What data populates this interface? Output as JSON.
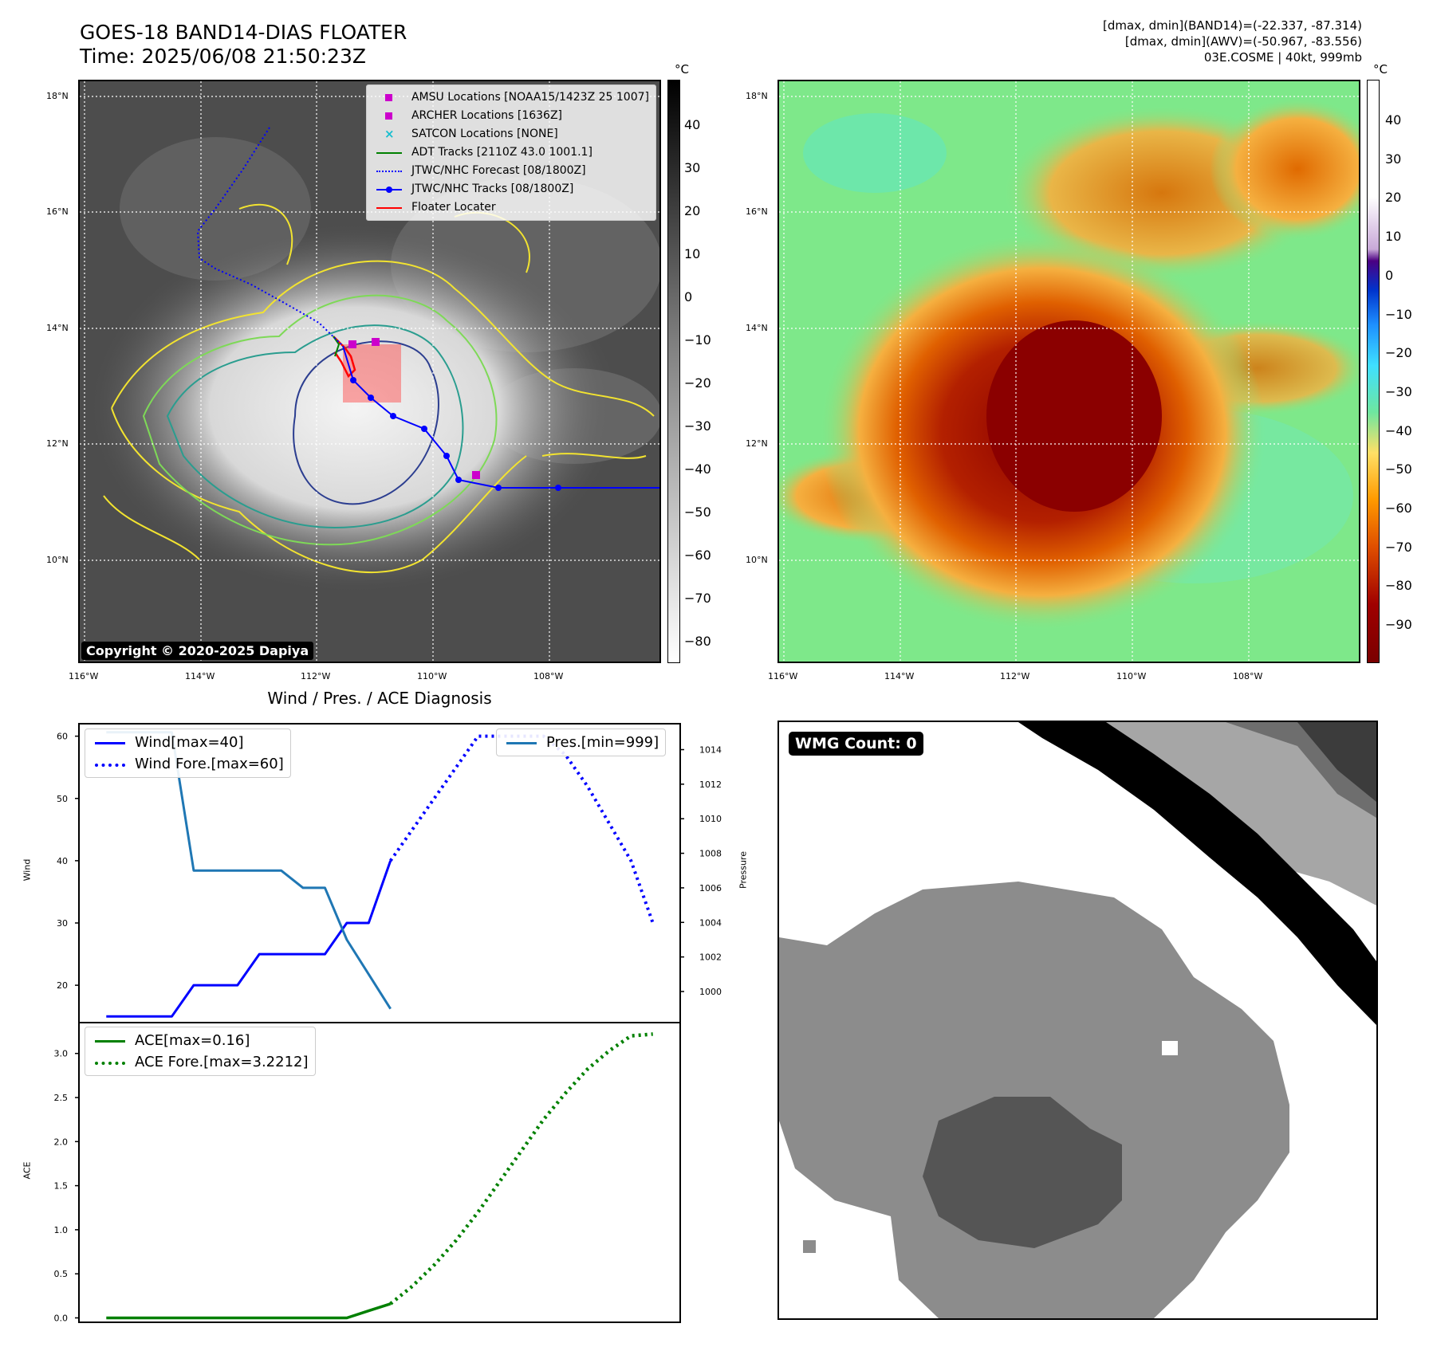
{
  "header": {
    "title": "GOES-18 BAND14-DIAS FLOATER",
    "time": "Time: 2025/06/08 21:50:23Z",
    "info_line1": "[dmax, dmin](BAND14)=(-22.337, -87.314)",
    "info_line2": "[dmax, dmin](AWV)=(-50.967, -83.556)",
    "info_line3": "03E.COSME | 40kt, 999mb"
  },
  "map_left": {
    "lat_labels": [
      "18°N",
      "16°N",
      "14°N",
      "12°N",
      "10°N"
    ],
    "lon_labels": [
      "116°W",
      "114°W",
      "112°W",
      "110°W",
      "108°W"
    ],
    "copyright": "Copyright © 2020-2025 Dapiya",
    "legend": [
      {
        "label": "AMSU Locations [NOAA15/1423Z 25 1007]",
        "symbol": "square",
        "color": "#cc00cc"
      },
      {
        "label": "ARCHER Locations [1636Z]",
        "symbol": "square",
        "color": "#cc00cc"
      },
      {
        "label": "SATCON Locations [NONE]",
        "symbol": "x",
        "color": "#17becf"
      },
      {
        "label": "ADT Tracks [2110Z 43.0 1001.1]",
        "symbol": "line",
        "color": "#008000"
      },
      {
        "label": "JTWC/NHC Forecast [08/1800Z]",
        "symbol": "dotted",
        "color": "#0000ff"
      },
      {
        "label": "JTWC/NHC Tracks [08/1800Z]",
        "symbol": "line-dot",
        "color": "#0000ff"
      },
      {
        "label": "Floater Locater",
        "symbol": "line",
        "color": "#ff0000"
      }
    ],
    "colorbar": {
      "unit": "°C",
      "ticks": [
        "40",
        "30",
        "20",
        "10",
        "0",
        "−10",
        "−20",
        "−30",
        "−40",
        "−50",
        "−60",
        "−70",
        "−80"
      ]
    }
  },
  "map_right": {
    "lat_labels": [
      "18°N",
      "16°N",
      "14°N",
      "12°N",
      "10°N"
    ],
    "lon_labels": [
      "116°W",
      "114°W",
      "112°W",
      "110°W",
      "108°W"
    ],
    "colorbar": {
      "unit": "°C",
      "ticks": [
        "40",
        "30",
        "20",
        "10",
        "0",
        "−10",
        "−20",
        "−30",
        "−40",
        "−50",
        "−60",
        "−70",
        "−80",
        "−90"
      ]
    }
  },
  "diagnosis": {
    "title": "Wind / Pres. / ACE Diagnosis",
    "wind_ylabel": "Wind",
    "pres_ylabel": "Pressure",
    "ace_ylabel": "ACE",
    "legend_wind": "Wind[max=40]",
    "legend_wind_fore": "Wind Fore.[max=60]",
    "legend_pres": "Pres.[min=999]",
    "legend_ace": "ACE[max=0.16]",
    "legend_ace_fore": "ACE Fore.[max=3.2212]"
  },
  "wmg": {
    "label": "WMG Count: 0"
  },
  "colors": {
    "wind": "#0000ff",
    "pressure": "#1f77b4",
    "ace": "#008000"
  },
  "chart_data": [
    {
      "type": "line",
      "title": "Wind / Pres. / ACE Diagnosis",
      "ylabel": "Wind",
      "ylim": [
        14,
        62
      ],
      "yticks": [
        20,
        30,
        40,
        50,
        60
      ],
      "series": [
        {
          "name": "Wind[max=40]",
          "style": "solid",
          "x": [
            0,
            1,
            2,
            3,
            4,
            5,
            6,
            7,
            8,
            9,
            10,
            11,
            12,
            13
          ],
          "values": [
            15,
            15,
            15,
            15,
            20,
            20,
            20,
            25,
            25,
            25,
            25,
            30,
            30,
            40
          ]
        },
        {
          "name": "Wind Fore.[max=60]",
          "style": "dotted",
          "x": [
            13,
            14,
            15,
            16,
            17,
            18,
            19,
            20,
            21,
            22,
            23,
            24,
            25
          ],
          "values": [
            40,
            45,
            50,
            55,
            60,
            60,
            60,
            60,
            57,
            52,
            46,
            40,
            30
          ]
        }
      ]
    },
    {
      "type": "line",
      "ylabel": "Pressure",
      "ylim": [
        998.2,
        1015.5
      ],
      "yticks": [
        1000,
        1002,
        1004,
        1006,
        1008,
        1010,
        1012,
        1014
      ],
      "series": [
        {
          "name": "Pres.[min=999]",
          "style": "solid",
          "x": [
            0,
            1,
            2,
            3,
            4,
            5,
            6,
            7,
            8,
            9,
            10,
            11,
            12,
            13
          ],
          "values": [
            1015,
            1015,
            1015,
            1015,
            1007,
            1007,
            1007,
            1007,
            1007,
            1006,
            1006,
            1003,
            1001,
            999
          ]
        }
      ]
    },
    {
      "type": "line",
      "ylabel": "ACE",
      "ylim": [
        -0.05,
        3.35
      ],
      "yticks": [
        0.0,
        0.5,
        1.0,
        1.5,
        2.0,
        2.5,
        3.0
      ],
      "ytick_labels": [
        "0.0",
        "0.5",
        "1.0",
        "1.5",
        "2.0",
        "2.5",
        "3.0"
      ],
      "series": [
        {
          "name": "ACE[max=0.16]",
          "style": "solid",
          "x": [
            0,
            1,
            2,
            3,
            4,
            5,
            6,
            7,
            8,
            9,
            10,
            11,
            12,
            13
          ],
          "values": [
            0,
            0,
            0,
            0,
            0,
            0,
            0,
            0,
            0,
            0,
            0,
            0,
            0.08,
            0.16
          ]
        },
        {
          "name": "ACE Fore.[max=3.2212]",
          "style": "dotted",
          "x": [
            13,
            14,
            15,
            16,
            17,
            18,
            19,
            20,
            21,
            22,
            23,
            24,
            25
          ],
          "values": [
            0.16,
            0.36,
            0.6,
            0.88,
            1.2,
            1.55,
            1.9,
            2.25,
            2.55,
            2.82,
            3.03,
            3.2,
            3.22
          ]
        }
      ]
    }
  ]
}
